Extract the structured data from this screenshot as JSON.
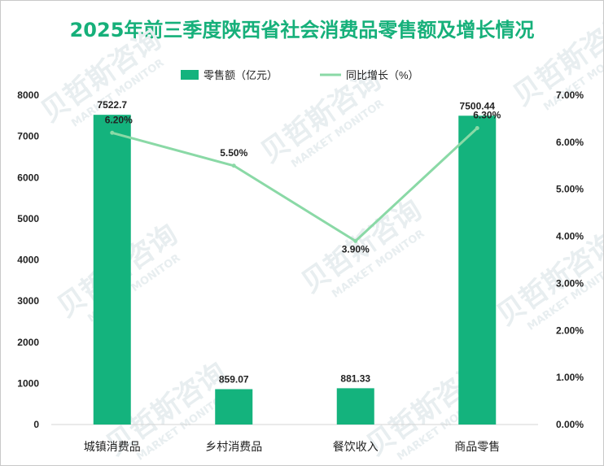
{
  "chart_data": {
    "type": "bar",
    "title": "2025年前三季度陕西省社会消费品零售额及增长情况",
    "categories": [
      "城镇消费品",
      "乡村消费品",
      "餐饮收入",
      "商品零售"
    ],
    "series": [
      {
        "name": "零售额（亿元）",
        "kind": "bar",
        "axis": "left",
        "values": [
          7522.7,
          859.07,
          881.33,
          7500.44
        ],
        "labels": [
          "7522.7",
          "859.07",
          "881.33",
          "7500.44"
        ]
      },
      {
        "name": "同比增长（%）",
        "kind": "line",
        "axis": "right",
        "values": [
          6.2,
          5.5,
          3.9,
          6.3
        ],
        "labels": [
          "6.20%",
          "5.50%",
          "3.90%",
          "6.30%"
        ]
      }
    ],
    "left_axis": {
      "ylim": [
        0,
        8000
      ],
      "ticks": [
        "0",
        "1000",
        "2000",
        "3000",
        "4000",
        "5000",
        "6000",
        "7000",
        "8000"
      ]
    },
    "right_axis": {
      "ylim": [
        0,
        7
      ],
      "ticks": [
        "0.00%",
        "1.00%",
        "2.00%",
        "3.00%",
        "4.00%",
        "5.00%",
        "6.00%",
        "7.00%"
      ]
    },
    "legend_position": "top",
    "grid": false,
    "colors": {
      "bar": "#14b37d",
      "line": "#8ad9a6",
      "title": "#16b07a",
      "text": "#222222",
      "watermark": "#e8eef0"
    },
    "watermark": {
      "cn": "贝哲斯咨询",
      "en": "MARKET MONITOR"
    }
  }
}
